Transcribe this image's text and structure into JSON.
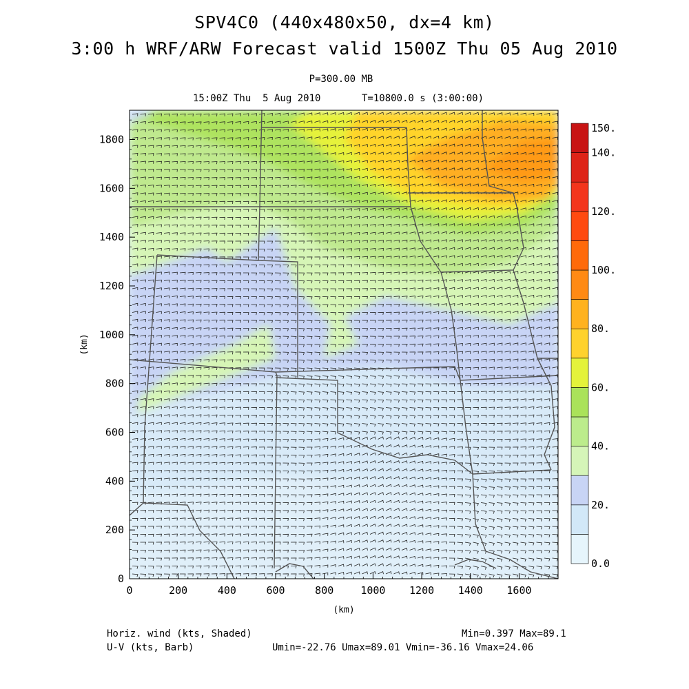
{
  "header": {
    "title_line1": "SPV4C0 (440x480x50, dx=4 km)",
    "title_line2": "3:00 h WRF/ARW Forecast valid 1500Z Thu 05 Aug 2010",
    "level": "P=300.00 MB",
    "valid_time": "15:00Z Thu  5 Aug 2010",
    "time_info": "T=10800.0 s (3:00:00)"
  },
  "map": {
    "x_axis_label": "(km)",
    "y_axis_label": "(km)",
    "x_ticks": [
      "0",
      "200",
      "400",
      "600",
      "800",
      "1000",
      "1200",
      "1400",
      "1600"
    ],
    "y_ticks": [
      "0",
      "200",
      "400",
      "600",
      "800",
      "1000",
      "1200",
      "1400",
      "1600",
      "1800"
    ],
    "x_range": [
      0,
      1760
    ],
    "y_range": [
      0,
      1920
    ],
    "shaded_field": "Horiz. wind (kts, Shaded)",
    "barb_field": "U-V (kts, Barb)"
  },
  "colorbar": {
    "labels": [
      "0.0",
      "20.",
      "40.",
      "60.",
      "80.",
      "100.",
      "120.",
      "140.",
      "150."
    ],
    "levels": [
      0,
      10,
      20,
      30,
      40,
      50,
      60,
      70,
      80,
      90,
      100,
      110,
      120,
      130,
      140,
      150
    ],
    "colors": [
      "#e6f5fc",
      "#d2e8f8",
      "#c8d4f5",
      "#d5f5b8",
      "#bcec8c",
      "#aae25a",
      "#e4f23a",
      "#ffd22d",
      "#ffb21e",
      "#ff8a14",
      "#ff6a0a",
      "#ff4a10",
      "#f3351c",
      "#de2418",
      "#c81414"
    ]
  },
  "footer": {
    "shaded_label": "Horiz. wind (kts, Shaded)",
    "barb_label": "U-V (kts, Barb)",
    "min_max": "Min=0.397 Max=89.1",
    "uv_stats": "Umin=-22.76 Umax=89.01 Vmin=-36.16 Vmax=24.06"
  }
}
